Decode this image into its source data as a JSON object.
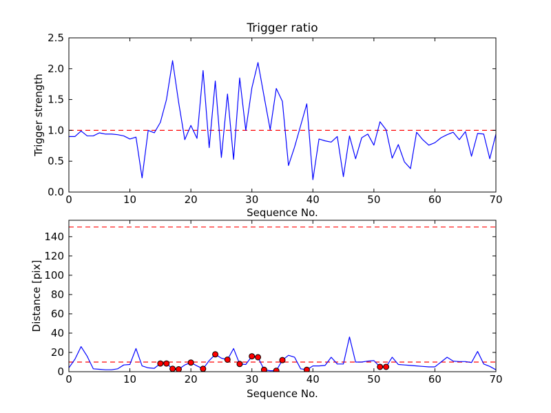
{
  "colors": {
    "line": "#0000ff",
    "threshold": "#ff0000",
    "marker_fill": "#ff0000",
    "marker_edge": "#000000",
    "axis": "#000000",
    "background": "#ffffff"
  },
  "chart_data": [
    {
      "id": "trigger-ratio",
      "type": "line",
      "title": "Trigger ratio",
      "xlabel": "Sequence No.",
      "ylabel": "Trigger strength",
      "x_start": 0,
      "x_step": 1,
      "xlim": [
        0,
        70
      ],
      "ylim": [
        0,
        2.5
      ],
      "xtick_labels": [
        "0",
        "10",
        "20",
        "30",
        "40",
        "50",
        "60",
        "70"
      ],
      "ytick_labels": [
        "0.0",
        "0.5",
        "1.0",
        "1.5",
        "2.0",
        "2.5"
      ],
      "grid": false,
      "legend": false,
      "series": [
        {
          "name": "trigger strength",
          "color": "#0000ff",
          "values": [
            0.9,
            0.9,
            0.99,
            0.91,
            0.91,
            0.96,
            0.94,
            0.94,
            0.93,
            0.91,
            0.86,
            0.89,
            0.23,
            1.0,
            0.96,
            1.13,
            1.5,
            2.13,
            1.45,
            0.85,
            1.08,
            0.87,
            1.97,
            0.72,
            1.8,
            0.56,
            1.59,
            0.53,
            1.85,
            1.0,
            1.69,
            2.1,
            1.55,
            1.01,
            1.68,
            1.47,
            0.43,
            0.73,
            1.08,
            1.43,
            0.2,
            0.86,
            0.83,
            0.81,
            0.9,
            0.25,
            0.91,
            0.54,
            0.88,
            0.94,
            0.76,
            1.14,
            1.01,
            0.55,
            0.77,
            0.49,
            0.38,
            0.97,
            0.85,
            0.76,
            0.8,
            0.88,
            0.93,
            0.97,
            0.85,
            0.98,
            0.58,
            0.95,
            0.94,
            0.54,
            0.94
          ]
        }
      ],
      "hlines": [
        {
          "y": 1.0,
          "color": "#ff0000",
          "style": "dashed"
        }
      ]
    },
    {
      "id": "distance",
      "type": "line",
      "title": "",
      "xlabel": "Sequence No.",
      "ylabel": "Distance [pix]",
      "x_start": 0,
      "x_step": 1,
      "xlim": [
        0,
        70
      ],
      "ylim": [
        0,
        157
      ],
      "xtick_labels": [
        "0",
        "10",
        "20",
        "30",
        "40",
        "50",
        "60",
        "70"
      ],
      "ytick_labels": [
        "0",
        "20",
        "40",
        "60",
        "80",
        "100",
        "120",
        "140"
      ],
      "grid": false,
      "legend": false,
      "series": [
        {
          "name": "distance",
          "color": "#0000ff",
          "values": [
            4,
            13,
            26,
            16,
            3,
            2.5,
            2,
            2,
            3,
            7,
            7.5,
            24,
            6,
            4,
            3.5,
            8.5,
            8.5,
            3,
            2.5,
            7,
            9.5,
            6,
            3,
            11.5,
            18,
            14,
            12.5,
            24,
            8,
            7.5,
            16,
            15,
            2,
            1,
            1,
            12,
            17,
            15,
            3,
            2,
            6,
            6,
            6.5,
            15,
            8,
            8,
            36,
            10,
            10,
            11,
            11.5,
            5,
            5,
            15,
            7.5,
            7,
            6.5,
            6,
            5.5,
            5,
            5,
            10,
            15,
            11,
            10.5,
            10.5,
            9.5,
            21,
            8,
            5.5,
            2
          ]
        }
      ],
      "markers": {
        "shape": "circle",
        "fill": "#ff0000",
        "edge": "#000000",
        "radius": 4,
        "indices": [
          15,
          16,
          17,
          18,
          20,
          22,
          24,
          26,
          28,
          30,
          31,
          32,
          34,
          35,
          39,
          51,
          52
        ]
      },
      "hlines": [
        {
          "y": 150,
          "color": "#ff0000",
          "style": "dashed"
        },
        {
          "y": 10,
          "color": "#ff0000",
          "style": "dashed"
        }
      ]
    }
  ]
}
